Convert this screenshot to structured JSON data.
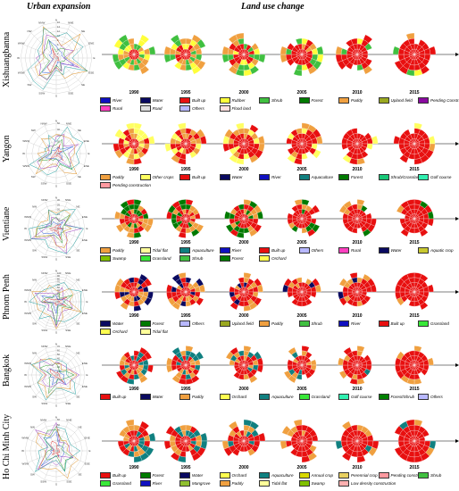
{
  "headers": {
    "left": "Urban expansion",
    "right": "Land use change"
  },
  "directions": [
    "N",
    "NNE",
    "NE",
    "ENE",
    "E",
    "ESE",
    "SE",
    "SSE",
    "S",
    "SSW",
    "SW",
    "WSW",
    "W",
    "WNW",
    "NW",
    "NNW"
  ],
  "years": [
    "1990",
    "1995",
    "2000",
    "2005",
    "2010",
    "2015"
  ],
  "colors": {
    "River": "#1010c0",
    "Water": "#0a0a60",
    "Built up": "#e81010",
    "Rubber": "#ffff3a",
    "Shrub": "#40c040",
    "Forest": "#007a00",
    "Paddy": "#f0a040",
    "Upland field": "#9aa820",
    "Pending Construction": "#8a0aa0",
    "Rural": "#ff40c0",
    "Road": "#e0e0e0",
    "Others": "#b8b8ff",
    "Flood land": "#ffe0e0",
    "Other crops": "#ffff60",
    "Aquaculture": "#108080",
    "Shrub/Grassland": "#18c878",
    "Golf course": "#30f0b0",
    "Pending construction": "#ff9aa0",
    "Tidal flat": "#ffff9a",
    "Aquatic crop": "#c8c830",
    "Swamp": "#80c000",
    "Grassland": "#38e838",
    "Orchard": "#ffff50",
    "Forest/Shrub": "#008000",
    "Annual crop": "#d8d800",
    "Perennial crop": "#e8d060",
    "Mangrove": "#90c030",
    "Low density construction": "#ffb0b0"
  },
  "cities": [
    {
      "name": "Xishuangbanna",
      "ring_colors": [
        "Paddy",
        "Rubber",
        "Shrub",
        "Forest",
        "Built up",
        "Upland field",
        "River"
      ],
      "legend": [
        "River",
        "Water",
        "Built up",
        "Rubber",
        "Shrub",
        "Forest",
        "Paddy",
        "Upland field",
        "Pending Construction",
        "Rural",
        "Road",
        "Others",
        "Flood land"
      ],
      "radar_ticks": [
        0,
        2,
        4,
        6,
        8,
        10,
        12,
        14,
        16
      ]
    },
    {
      "name": "Yangon",
      "ring_colors": [
        "Paddy",
        "Other crops",
        "Built up",
        "Water",
        "River",
        "Aquaculture",
        "Forest",
        "Shrub/Grassland",
        "Golf course",
        "Pending construction"
      ],
      "legend": [
        "Paddy",
        "Other crops",
        "Built up",
        "Water",
        "River",
        "Aquaculture",
        "Forest",
        "Shrub/Grassland",
        "Golf course",
        "Pending construction"
      ],
      "radar_ticks": [
        0,
        10,
        20,
        30,
        40,
        50
      ]
    },
    {
      "name": "Vientiane",
      "ring_colors": [
        "Paddy",
        "Forest",
        "Built up",
        "River",
        "Tidal flat",
        "Aquaculture"
      ],
      "legend": [
        "Paddy",
        "Tidal flat",
        "Aquaculture",
        "River",
        "Built up",
        "Others",
        "Rural",
        "Water",
        "Aquatic crop",
        "Swamp",
        "Grassland",
        "Shrub",
        "Forest",
        "Orchard"
      ],
      "radar_ticks": [
        0,
        5,
        10,
        15,
        20,
        25,
        30
      ]
    },
    {
      "name": "Phnom Penh",
      "ring_colors": [
        "Paddy",
        "Built up",
        "Water",
        "River",
        "Upland field",
        "Aquaculture",
        "Forest",
        "Shrub"
      ],
      "legend": [
        "Water",
        "Forest",
        "Others",
        "Upland field",
        "Paddy",
        "Shrub",
        "River",
        "Built up",
        "Grassland",
        "Orchard",
        "Tidal flat"
      ],
      "radar_ticks": [
        0,
        10,
        20,
        30,
        40,
        50,
        60,
        70,
        80,
        90,
        100
      ]
    },
    {
      "name": "Bangkok",
      "ring_colors": [
        "Paddy",
        "Built up",
        "Aquaculture",
        "Water",
        "Orchard",
        "Others"
      ],
      "legend": [
        "Built up",
        "Water",
        "Paddy",
        "Orchard",
        "Aquaculture",
        "Grassland",
        "Golf course",
        "Forest/Shrub",
        "Others"
      ],
      "radar_ticks": [
        0,
        10,
        20,
        30,
        40,
        50,
        60,
        70
      ]
    },
    {
      "name": "Ho Chi Minh City",
      "ring_colors": [
        "Paddy",
        "Built up",
        "Aquaculture",
        "Forest",
        "Orchard",
        "Mangrove",
        "Annual crop",
        "Water"
      ],
      "legend": [
        "Built up",
        "Forest",
        "Water",
        "Orchard",
        "Aquaculture",
        "Annual crop",
        "Perennial crop",
        "Pending construction",
        "Shrub",
        "Grassland",
        "River",
        "Mangrove",
        "Paddy",
        "Tidal flat",
        "Swamp",
        "Low density construction"
      ],
      "radar_ticks": [
        0,
        10,
        20,
        30,
        40,
        50,
        60
      ]
    }
  ],
  "chart_data": {
    "type": "radar",
    "title": "",
    "series": [
      "1990",
      "1995",
      "2000",
      "2005",
      "2010",
      "2015"
    ],
    "note": "Directional urban expansion radar plots and concentric land use change ring diagrams for six cities across 1990-2015"
  }
}
